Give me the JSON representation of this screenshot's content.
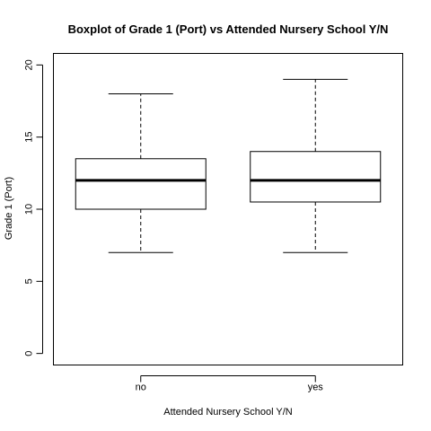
{
  "chart_data": {
    "type": "boxplot",
    "title": "Boxplot of Grade 1 (Port)  vs  Attended Nursery School Y/N",
    "xlabel": "Attended Nursery School Y/N",
    "ylabel": "Grade 1 (Port)",
    "ylim": [
      -0.8,
      20.8
    ],
    "yticks": [
      "0",
      "5",
      "10",
      "15",
      "20"
    ],
    "categories": [
      "no",
      "yes"
    ],
    "boxes": [
      {
        "category": "no",
        "min": 7,
        "q1": 10,
        "median": 12,
        "q3": 13.5,
        "max": 18
      },
      {
        "category": "yes",
        "min": 7,
        "q1": 10.5,
        "median": 12,
        "q3": 14,
        "max": 19
      }
    ],
    "grid": false,
    "legend": "none"
  }
}
